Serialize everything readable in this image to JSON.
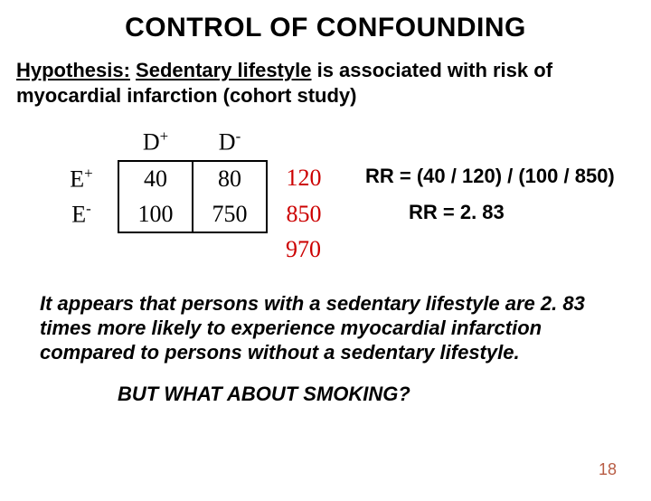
{
  "title": "CONTROL OF CONFOUNDING",
  "hypothesis": {
    "label": "Hypothesis:",
    "exposure": "Sedentary lifestyle",
    "rest": " is associated with risk of myocardial infarction (cohort study)"
  },
  "table": {
    "col_labels": {
      "d_plus": "D",
      "d_minus": "D"
    },
    "row_labels": {
      "e_plus": "E",
      "e_minus": "E"
    },
    "cells": {
      "a": "40",
      "b": "80",
      "c": "100",
      "d": "750"
    },
    "row_totals": {
      "r1": "120",
      "r2": "850"
    },
    "grand_total": "970",
    "total_color": "#cc0000",
    "border_color": "#000000"
  },
  "rr": {
    "formula": "RR = (40 / 120) / (100 / 850)",
    "result": "RR = 2. 83"
  },
  "interpretation": "It appears that persons with a sedentary lifestyle are 2. 83 times more likely to experience myocardial infarction compared to persons without a sedentary lifestyle.",
  "closing": "BUT WHAT ABOUT SMOKING?",
  "page_number": "18",
  "colors": {
    "title": "#000000",
    "text": "#000000",
    "pagenum": "#b85c44"
  }
}
